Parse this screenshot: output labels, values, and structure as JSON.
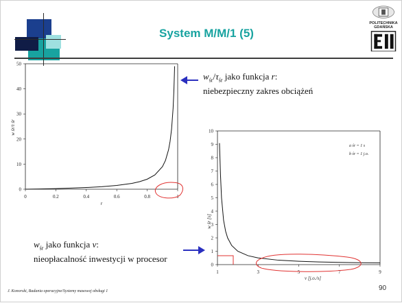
{
  "slide": {
    "title": "System M/M/1 (5)",
    "logo_text": "POLITECHNIKA GDAŃSKA",
    "footer": "J. Konorski, Badania operacyjne/Systemy masowej obsługi 1",
    "page": "90"
  },
  "annotations": {
    "top_sym": "w",
    "top_sub": "śr",
    "top_slash": "/",
    "top_tau": "τ",
    "top_tau_sub": "śr",
    "top_rest": " jako funkcja ",
    "top_var": "r",
    "top_colon": ":",
    "top_line2": "niebezpieczny zakres obciążeń",
    "bottom_sym": "w",
    "bottom_sub": "śr",
    "bottom_rest": " jako funkcja ",
    "bottom_var": "v",
    "bottom_colon": ":",
    "bottom_line2": "nieopłacalność inwestycji w procesor"
  },
  "colors": {
    "title": "#18a3a0",
    "arrow": "#2a2fbf",
    "marker": "#e0302f",
    "curve": "#111111"
  },
  "chart_data": [
    {
      "type": "line",
      "title": "",
      "xlabel": "r",
      "ylabel": "w śr/τ śr",
      "xlim": [
        0,
        1
      ],
      "ylim": [
        0,
        50
      ],
      "xticks": [
        "0",
        "0.2",
        "0.4",
        "0.6",
        "0.8",
        "1"
      ],
      "yticks": [
        "0",
        "10",
        "20",
        "30",
        "40",
        "50"
      ],
      "series": [
        {
          "x": [
            0,
            0.1,
            0.2,
            0.3,
            0.4,
            0.5,
            0.6,
            0.7,
            0.75,
            0.8,
            0.85,
            0.9,
            0.92,
            0.94,
            0.95,
            0.96,
            0.97,
            0.975,
            0.98
          ],
          "y": [
            0,
            0.11,
            0.25,
            0.43,
            0.67,
            1,
            1.5,
            2.33,
            3,
            4,
            5.67,
            9,
            11.5,
            15.7,
            19,
            24,
            32.3,
            39,
            49
          ]
        }
      ]
    },
    {
      "type": "line",
      "title": "",
      "xlabel": "v [j.o./s]",
      "ylabel": "w śr [s]",
      "xlim": [
        1,
        9
      ],
      "ylim": [
        0,
        10
      ],
      "xticks": [
        "1",
        "3",
        "5",
        "7",
        "9"
      ],
      "yticks": [
        "0",
        "1",
        "2",
        "3",
        "4",
        "5",
        "6",
        "7",
        "8",
        "9",
        "10"
      ],
      "inset_labels": [
        "a śr = 1 s",
        "b śr = 1 j.o."
      ],
      "series": [
        {
          "x": [
            1.1,
            1.15,
            1.2,
            1.3,
            1.4,
            1.5,
            1.7,
            2,
            2.5,
            3,
            4,
            5,
            6,
            7,
            8,
            9
          ],
          "y": [
            9.09,
            6.67,
            5,
            3.33,
            2.5,
            2,
            1.43,
            1,
            0.67,
            0.5,
            0.33,
            0.25,
            0.2,
            0.17,
            0.14,
            0.125
          ]
        }
      ]
    }
  ]
}
